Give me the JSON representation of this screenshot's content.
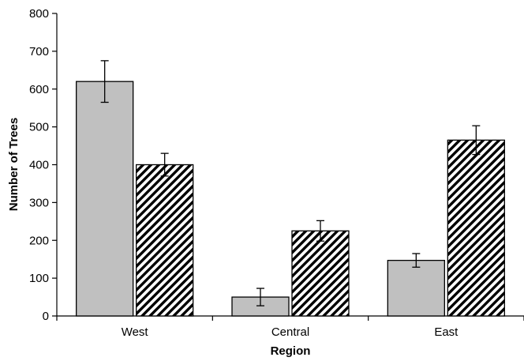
{
  "chart_data": {
    "type": "bar",
    "title": "",
    "xlabel": "Region",
    "ylabel": "Number of Trees",
    "categories": [
      "West",
      "Central",
      "East"
    ],
    "ylim": [
      0,
      800
    ],
    "yticks": [
      0,
      100,
      200,
      300,
      400,
      500,
      600,
      700,
      800
    ],
    "grid": false,
    "legend": "none",
    "series": [
      {
        "fill": "solid-gray",
        "color": "#c0c0c0",
        "values": [
          620,
          50,
          147
        ],
        "error": [
          55,
          23,
          18
        ]
      },
      {
        "fill": "diagonal-hatch",
        "color": "#000000",
        "values": [
          400,
          225,
          465
        ],
        "error": [
          30,
          27,
          38
        ]
      }
    ]
  }
}
